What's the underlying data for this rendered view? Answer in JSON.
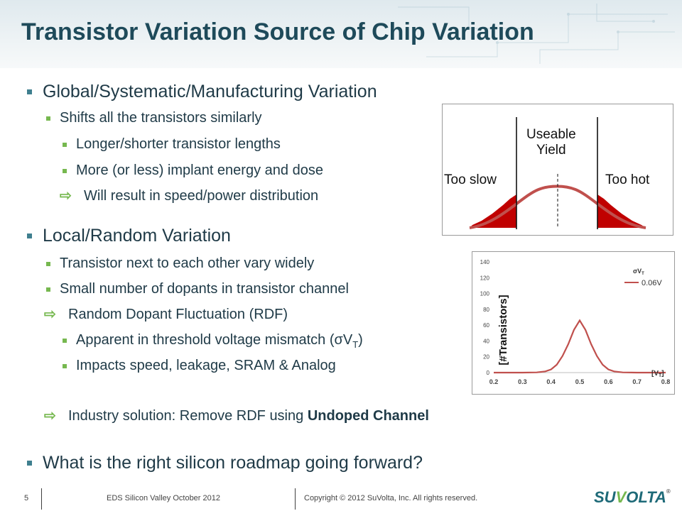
{
  "slide": {
    "title": "Transistor Variation Source of Chip Variation",
    "bullets": {
      "global": "Global/Systematic/Manufacturing  Variation",
      "shifts": "Shifts all the transistors similarly",
      "longer": "Longer/shorter transistor lengths",
      "implant": "More (or less) implant energy and dose",
      "speed": "Will result in speed/power distribution",
      "local": "Local/Random  Variation",
      "next": "Transistor next to each other vary widely",
      "small": "Small number of dopants in transistor channel",
      "rdf": "Random Dopant Fluctuation (RDF)",
      "apparent_pre": "Apparent in threshold voltage mismatch (σV",
      "apparent_sub": "T",
      "apparent_post": ")",
      "impacts": "Impacts speed, leakage, SRAM & Analog",
      "industry_pre": "Industry solution: Remove RDF using ",
      "industry_bold": "Undoped Channel",
      "roadmap": "What is the right silicon roadmap going forward?"
    },
    "arrow_glyph": "⇨"
  },
  "distribution_figure": {
    "too_slow": "Too slow",
    "useable": "Useable",
    "yield": "Yield",
    "too_hot": "Too hot"
  },
  "chart_data": {
    "type": "line",
    "ylabel": "[#Transistors]",
    "xlabel": "[V",
    "xlabel_sub": "T",
    "xlabel_end": "]",
    "legend_title": "σV",
    "legend_title_sub": "T",
    "x_ticks": [
      "0.2",
      "0.3",
      "0.4",
      "0.5",
      "0.6",
      "0.7",
      "0.8"
    ],
    "y_ticks": [
      "0",
      "20",
      "40",
      "60",
      "80",
      "100",
      "120",
      "140"
    ],
    "xlim": [
      0.2,
      0.8
    ],
    "ylim": [
      0,
      140
    ],
    "series": [
      {
        "name": "0.06V",
        "color": "#c0504d",
        "x": [
          0.2,
          0.25,
          0.3,
          0.35,
          0.38,
          0.4,
          0.42,
          0.44,
          0.46,
          0.48,
          0.5,
          0.52,
          0.54,
          0.56,
          0.58,
          0.6,
          0.62,
          0.65,
          0.7,
          0.75,
          0.8
        ],
        "y": [
          0,
          0,
          0,
          0.3,
          1.5,
          4,
          10,
          21,
          36,
          54,
          66,
          54,
          36,
          21,
          10,
          4,
          1.5,
          0.3,
          0,
          0,
          0
        ]
      }
    ],
    "grid": false,
    "legend_position": "top-right"
  },
  "footer": {
    "page_number": "5",
    "event": "EDS Silicon Valley October 2012",
    "copyright": "Copyright © 2012 SuVolta, Inc.  All rights reserved.",
    "logo_su": "SU",
    "logo_v": "V",
    "logo_olta": "OLTA",
    "logo_reg": "®"
  },
  "colors": {
    "title": "#1e4a5a",
    "bullet_square": "#3f7f8f",
    "sub_bullet": "#76b84f",
    "curve": "#c0504d",
    "tail_fill": "#c00000"
  }
}
